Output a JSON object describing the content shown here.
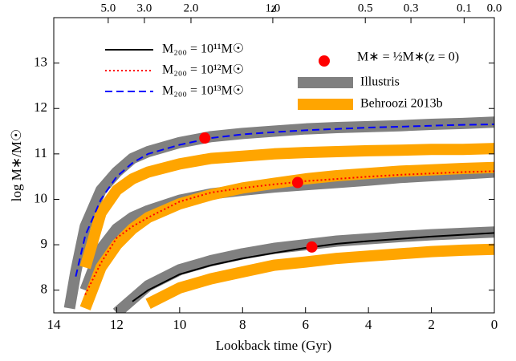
{
  "chart_data": {
    "type": "line",
    "xlabel": "Lookback time (Gyr)",
    "ylabel": "log M∗/M☉",
    "x2label": "z",
    "xlim": [
      14,
      0
    ],
    "ylim": [
      7.5,
      14
    ],
    "xticks": [
      14,
      12,
      10,
      8,
      6,
      4,
      2,
      0
    ],
    "yticks": [
      8,
      9,
      10,
      11,
      12,
      13
    ],
    "x2ticks": [
      {
        "value": 12.27,
        "label": "5.0"
      },
      {
        "value": 11.12,
        "label": "3.0"
      },
      {
        "value": 9.64,
        "label": "2.0"
      },
      {
        "value": 7.04,
        "label": "1.0"
      },
      {
        "value": 4.1,
        "label": "0.5"
      },
      {
        "value": 2.65,
        "label": "0.3"
      },
      {
        "value": 0.96,
        "label": "0.1"
      },
      {
        "value": 0,
        "label": "0.0"
      }
    ],
    "x": [
      13.5,
      13.3,
      13,
      12.5,
      12,
      11.5,
      11,
      10,
      9,
      8,
      7,
      6,
      5,
      4,
      3,
      2,
      1,
      0
    ],
    "bands": [
      {
        "name": "Illustris",
        "color": "#808080",
        "curves": [
          [
            null,
            null,
            null,
            null,
            7.5,
            7.8,
            8.1,
            8.45,
            8.65,
            8.8,
            8.92,
            9.0,
            9.08,
            9.13,
            9.18,
            9.22,
            9.25,
            9.28
          ],
          [
            null,
            null,
            8.0,
            8.9,
            9.35,
            9.6,
            9.75,
            9.98,
            10.12,
            10.2,
            10.27,
            10.32,
            10.37,
            10.42,
            10.48,
            10.52,
            10.56,
            10.6
          ],
          [
            7.6,
            8.4,
            9.4,
            10.2,
            10.6,
            10.9,
            11.05,
            11.25,
            11.38,
            11.45,
            11.5,
            11.55,
            11.58,
            11.6,
            11.62,
            11.65,
            11.67,
            11.7
          ]
        ]
      },
      {
        "name": "Behroozi 2013b",
        "color": "#ffa500",
        "curves": [
          [
            null,
            null,
            null,
            null,
            null,
            null,
            7.7,
            8.05,
            8.25,
            8.4,
            8.55,
            8.62,
            8.7,
            8.75,
            8.8,
            8.85,
            8.88,
            8.9
          ],
          [
            null,
            null,
            7.6,
            8.5,
            9.0,
            9.35,
            9.6,
            9.9,
            10.1,
            10.25,
            10.35,
            10.45,
            10.52,
            10.57,
            10.62,
            10.65,
            10.68,
            10.7
          ],
          [
            null,
            null,
            8.5,
            9.7,
            10.2,
            10.45,
            10.6,
            10.78,
            10.9,
            10.95,
            11.0,
            11.03,
            11.05,
            11.07,
            11.08,
            11.1,
            11.1,
            11.12
          ]
        ]
      }
    ],
    "series": [
      {
        "name": "M₂₀₀ = 10¹¹M☉",
        "color": "#000000",
        "dash": "solid",
        "values": [
          null,
          null,
          null,
          null,
          null,
          7.75,
          8.0,
          8.35,
          8.55,
          8.7,
          8.82,
          8.93,
          9.02,
          9.08,
          9.13,
          9.18,
          9.22,
          9.26
        ]
      },
      {
        "name": "M₂₀₀ = 10¹²M☉",
        "color": "#ff0000",
        "dash": "dotted",
        "values": [
          null,
          null,
          7.9,
          8.6,
          9.15,
          9.4,
          9.6,
          9.95,
          10.15,
          10.25,
          10.33,
          10.4,
          10.45,
          10.5,
          10.54,
          10.57,
          10.6,
          10.62
        ]
      },
      {
        "name": "M₂₀₀ = 10¹³M☉",
        "color": "#0000ff",
        "dash": "dashed",
        "values": [
          null,
          8.3,
          9.2,
          10.0,
          10.5,
          10.8,
          11.0,
          11.2,
          11.35,
          11.43,
          11.48,
          11.52,
          11.55,
          11.58,
          11.6,
          11.62,
          11.64,
          11.65
        ]
      }
    ],
    "points": {
      "name": "M∗ = ½M∗(z = 0)",
      "color": "#ff0000",
      "x": [
        9.2,
        6.25,
        5.8
      ],
      "values": [
        11.35,
        10.37,
        8.95
      ]
    }
  }
}
